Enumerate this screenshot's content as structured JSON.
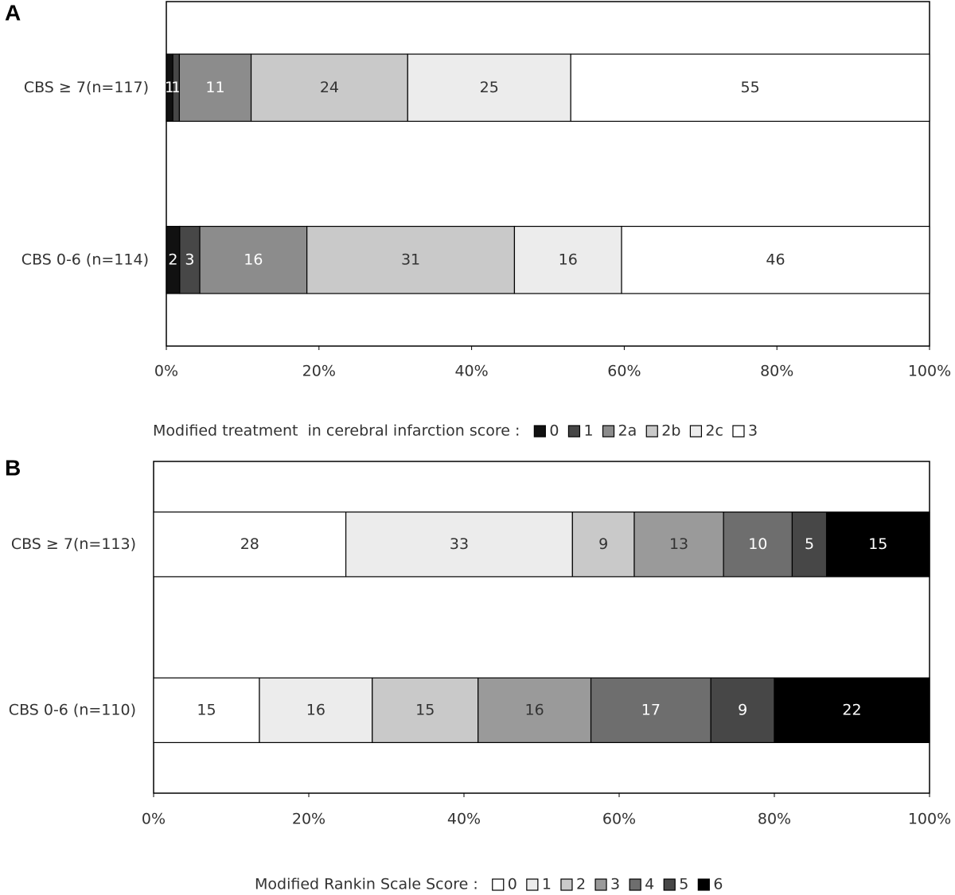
{
  "chart_data": [
    {
      "type": "bar",
      "orientation": "horizontal",
      "stacked": "percent",
      "panel_label": "A",
      "categories": [
        "CBS ≥ 7(n=117)",
        "CBS 0-6 (n=114)"
      ],
      "series": [
        {
          "name": "0",
          "color": "#111111",
          "values": [
            1,
            2
          ]
        },
        {
          "name": "1",
          "color": "#474747",
          "values": [
            1,
            3
          ]
        },
        {
          "name": "2a",
          "color": "#8c8c8c",
          "values": [
            11,
            16
          ]
        },
        {
          "name": "2b",
          "color": "#c9c9c9",
          "values": [
            24,
            31
          ]
        },
        {
          "name": "2c",
          "color": "#ececec",
          "values": [
            25,
            16
          ]
        },
        {
          "name": "3",
          "color": "#ffffff",
          "values": [
            55,
            46
          ]
        }
      ],
      "xlim": [
        0,
        100
      ],
      "xticks": [
        {
          "value": 0,
          "label": "0%"
        },
        {
          "value": 20,
          "label": "20%"
        },
        {
          "value": 40,
          "label": "40%"
        },
        {
          "value": 60,
          "label": "60%"
        },
        {
          "value": 80,
          "label": "80%"
        },
        {
          "value": 100,
          "label": "100%"
        }
      ],
      "legend_title": "Modified treatment  in cerebral infarction score :"
    },
    {
      "type": "bar",
      "orientation": "horizontal",
      "stacked": "percent",
      "panel_label": "B",
      "categories": [
        "CBS ≥ 7(n=113)",
        "CBS 0-6 (n=110)"
      ],
      "series": [
        {
          "name": "0",
          "color": "#ffffff",
          "values": [
            28,
            15
          ]
        },
        {
          "name": "1",
          "color": "#ececec",
          "values": [
            33,
            16
          ]
        },
        {
          "name": "2",
          "color": "#c9c9c9",
          "values": [
            9,
            15
          ]
        },
        {
          "name": "3",
          "color": "#9a9a9a",
          "values": [
            13,
            16
          ]
        },
        {
          "name": "4",
          "color": "#6e6e6e",
          "values": [
            10,
            17
          ]
        },
        {
          "name": "5",
          "color": "#474747",
          "values": [
            5,
            9
          ]
        },
        {
          "name": "6",
          "color": "#000000",
          "values": [
            15,
            22
          ]
        }
      ],
      "xlim": [
        0,
        100
      ],
      "xticks": [
        {
          "value": 0,
          "label": "0%"
        },
        {
          "value": 20,
          "label": "20%"
        },
        {
          "value": 40,
          "label": "40%"
        },
        {
          "value": 60,
          "label": "60%"
        },
        {
          "value": 80,
          "label": "80%"
        },
        {
          "value": 100,
          "label": "100%"
        }
      ],
      "legend_title": "Modified Rankin Scale Score :"
    }
  ]
}
